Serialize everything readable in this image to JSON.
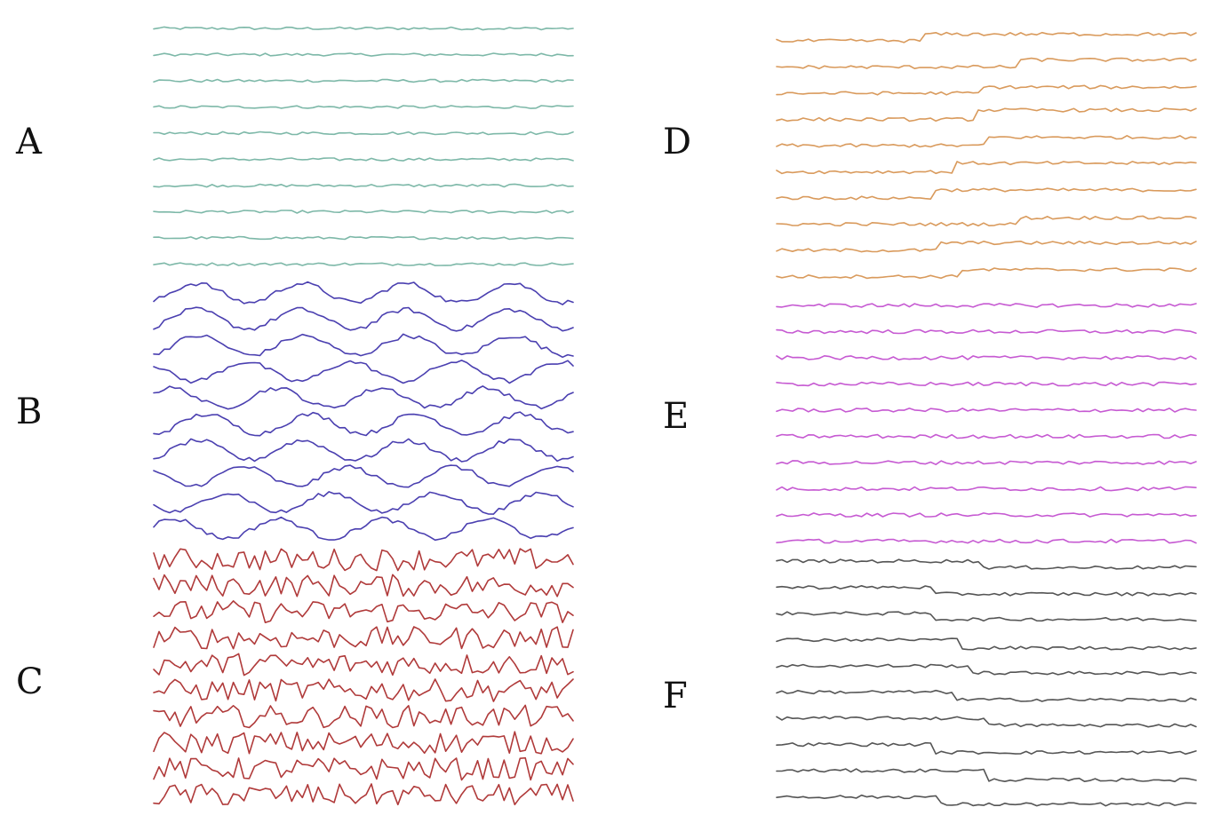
{
  "colors": {
    "A": "#7db8a8",
    "B": "#4a3fb0",
    "C": "#b03a3a",
    "D": "#d99a5c",
    "E": "#c65ad2",
    "F": "#555555"
  },
  "chart_data": {
    "type": "line",
    "title": "",
    "xlabel": "",
    "ylabel": "",
    "axes_visible": false,
    "grid": false,
    "legend": "none",
    "samples_per_trace": 80,
    "panels": [
      {
        "label": "A",
        "color_key": "A",
        "traces": 10,
        "amplitude": 0.25,
        "waviness": 0.0,
        "noise": 0.35,
        "steps": []
      },
      {
        "label": "B",
        "color_key": "B",
        "traces": 10,
        "amplitude": 0.6,
        "waviness": 1.0,
        "noise": 0.25,
        "steps": []
      },
      {
        "label": "C",
        "color_key": "C",
        "traces": 10,
        "amplitude": 0.7,
        "waviness": 0.0,
        "noise": 1.0,
        "steps": []
      },
      {
        "label": "D",
        "color_key": "D",
        "traces": 10,
        "amplitude": 0.3,
        "waviness": 0.0,
        "noise": 0.35,
        "steps": [
          0.42,
          0.45,
          0.38,
          0.58,
          0.52,
          0.54,
          0.5,
          0.4,
          0.47,
          0.43
        ]
      },
      {
        "label": "E",
        "color_key": "E",
        "traces": 10,
        "amplitude": 0.3,
        "waviness": 0.0,
        "noise": 0.4,
        "steps": []
      },
      {
        "label": "F",
        "color_key": "F",
        "traces": 10,
        "amplitude": 0.3,
        "waviness": 0.0,
        "noise": 0.35,
        "steps": [
          -0.4,
          -0.42,
          -0.36,
          -0.52,
          -0.45,
          -0.48,
          -0.44,
          -0.5,
          -0.58,
          -0.47
        ]
      }
    ]
  }
}
